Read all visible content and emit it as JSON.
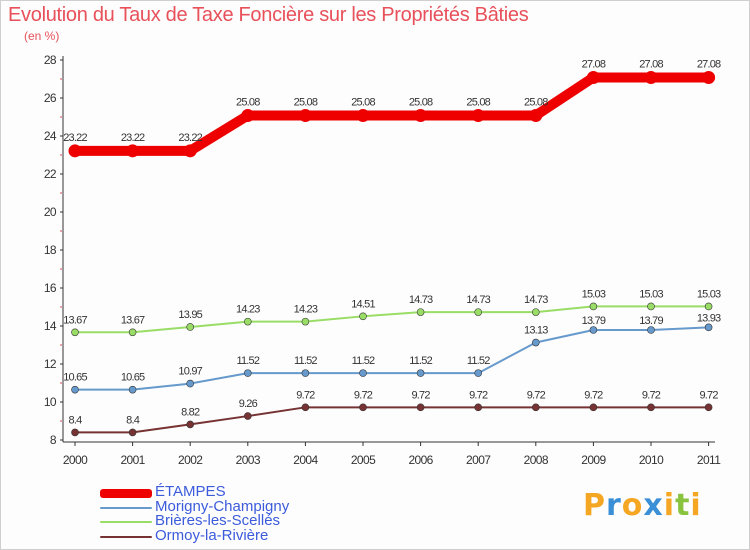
{
  "header": {
    "title": "Evolution du Taux de Taxe Foncière sur les Propriétés Bâties",
    "unit": "(en %)"
  },
  "brand": {
    "letters": [
      "P",
      "r",
      "o",
      "x",
      "i",
      "t",
      "i"
    ],
    "colors": [
      "#f5a623",
      "#3b8fd6",
      "#f5a623",
      "#3b8fd6",
      "#f5a623",
      "#8ac43f",
      "#f5a623"
    ]
  },
  "chart_data": {
    "type": "line",
    "title": "Evolution du Taux de Taxe Foncière sur les Propriétés Bâties",
    "ylabel": "(en %)",
    "xlabel": "",
    "categories": [
      "2000",
      "2001",
      "2002",
      "2003",
      "2004",
      "2005",
      "2006",
      "2007",
      "2008",
      "2009",
      "2010",
      "2011"
    ],
    "ylim": [
      8,
      28
    ],
    "yticks": [
      8,
      10,
      12,
      14,
      16,
      18,
      20,
      22,
      24,
      26,
      28
    ],
    "grid": false,
    "legend_position": "bottom-left",
    "series": [
      {
        "name": "ÉTAMPES",
        "color": "#ee0000",
        "labels": [
          "23.22",
          "23.22",
          "23.22",
          "25.08",
          "25.08",
          "25.08",
          "25.08",
          "25.08",
          "25.08",
          "27.08",
          "27.08",
          "27.08"
        ],
        "values": [
          23.22,
          23.22,
          23.22,
          25.08,
          25.08,
          25.08,
          25.08,
          25.08,
          25.08,
          27.08,
          27.08,
          27.08
        ]
      },
      {
        "name": "Morigny-Champigny",
        "color": "#6699cc",
        "labels": [
          "10.65",
          "10.65",
          "10.97",
          "11.52",
          "11.52",
          "11.52",
          "11.52",
          "11.52",
          "13.13",
          "13.79",
          "13.79",
          "13.93"
        ],
        "values": [
          10.65,
          10.65,
          10.97,
          11.52,
          11.52,
          11.52,
          11.52,
          11.52,
          13.13,
          13.79,
          13.79,
          13.93
        ]
      },
      {
        "name": "Brières-les-Scellés",
        "color": "#99dd66",
        "labels": [
          "13.67",
          "13.67",
          "13.95",
          "14.23",
          "14.23",
          "14.51",
          "14.73",
          "14.73",
          "14.73",
          "15.03",
          "15.03",
          "15.03"
        ],
        "values": [
          13.67,
          13.67,
          13.95,
          14.23,
          14.23,
          14.51,
          14.73,
          14.73,
          14.73,
          15.03,
          15.03,
          15.03
        ]
      },
      {
        "name": "Ormoy-la-Rivière",
        "color": "#773333",
        "labels": [
          "8.4",
          "8.4",
          "8.82",
          "9.26",
          "9.72",
          "9.72",
          "9.72",
          "9.72",
          "9.72",
          "9.72",
          "9.72",
          "9.72"
        ],
        "values": [
          8.4,
          8.4,
          8.82,
          9.26,
          9.72,
          9.72,
          9.72,
          9.72,
          9.72,
          9.72,
          9.72,
          9.72
        ]
      }
    ]
  }
}
